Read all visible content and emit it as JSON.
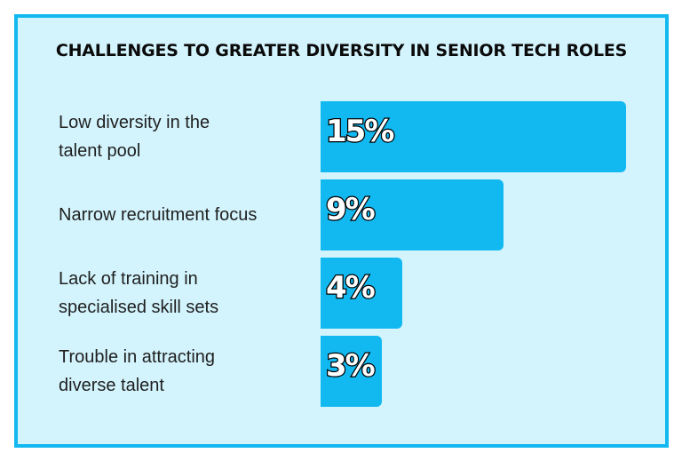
{
  "chart_data": {
    "type": "bar",
    "orientation": "horizontal",
    "title": "CHALLENGES TO GREATER DIVERSITY IN SENIOR TECH ROLES",
    "categories": [
      [
        "Low diversity in the",
        "talent pool"
      ],
      [
        "Narrow recruitment focus"
      ],
      [
        "Lack of training in",
        "specialised skill sets"
      ],
      [
        "Trouble in attracting",
        "diverse talent"
      ]
    ],
    "values": [
      15,
      9,
      4,
      3
    ],
    "value_labels": [
      "15%",
      "9%",
      "4%",
      "3%"
    ],
    "xlim": [
      0,
      15
    ],
    "grid": false,
    "bar_color": "#12b9f0",
    "background_color": "#d3f4fd",
    "border_color": "#12b9f0"
  }
}
